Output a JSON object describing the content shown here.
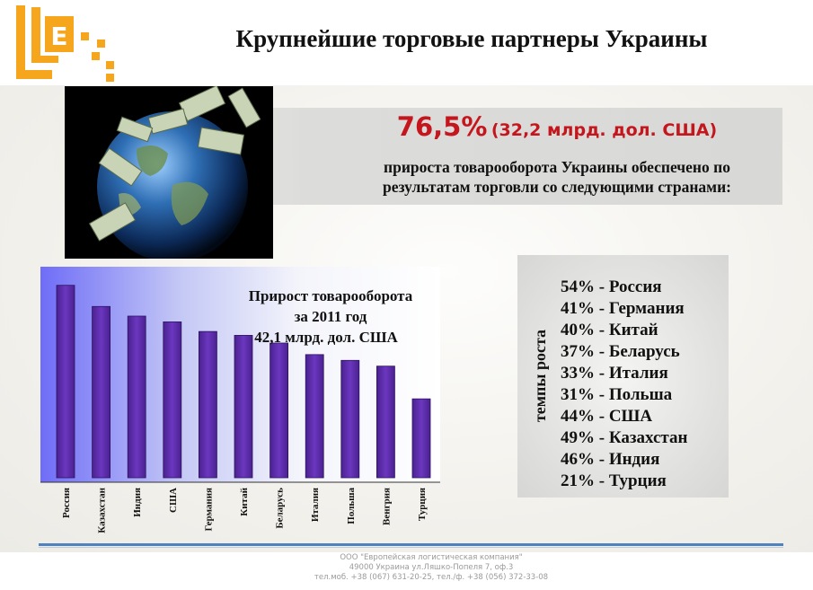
{
  "header": {
    "title": "Крупнейшие торговые партнеры Украины",
    "logo_letter": "E"
  },
  "highlight": {
    "percent": "76,5%",
    "amount": "(32,2 млрд. дол. США)",
    "description_line1": "прироста товарооборота Украины обеспечено по",
    "description_line2": "результатам торговли со следующими странами:"
  },
  "chart_data": {
    "type": "bar",
    "title_lines": [
      "Прирост товарооборота",
      "за 2011 год",
      "42,1 млрд. дол. США"
    ],
    "categories": [
      "Россия",
      "Казахстан",
      "Индия",
      "США",
      "Германия",
      "Китай",
      "Беларусь",
      "Италия",
      "Польша",
      "Венгрия",
      "Турция"
    ],
    "values": [
      100,
      89,
      84,
      81,
      76,
      74,
      70,
      64,
      61,
      58,
      41
    ],
    "ylim": [
      0,
      105
    ],
    "bar_color": "#5e2ea8",
    "legend": "none",
    "grid": false
  },
  "rates": {
    "axis_label": "темпы роста",
    "items": [
      "54% - Россия",
      "41% - Германия",
      "40% - Китай",
      "37% - Беларусь",
      "33% - Италия",
      "31% - Польша",
      "44% - США",
      "49% - Казахстан",
      "46% - Индия",
      "21% - Турция"
    ]
  },
  "footer": {
    "company": "ООО \"Европейская логистическая компания\"",
    "address": "49000 Украина ул.Ляшко-Попеля 7, оф.3",
    "phones": "тел.моб. +38 (067) 631-20-25, тел./ф. +38 (056) 372-33-08"
  },
  "colors": {
    "accent_orange": "#f5a61c",
    "percent_red": "#c4161c",
    "bar_purple": "#5e2ea8",
    "footer_blue": "#4f81bd"
  }
}
